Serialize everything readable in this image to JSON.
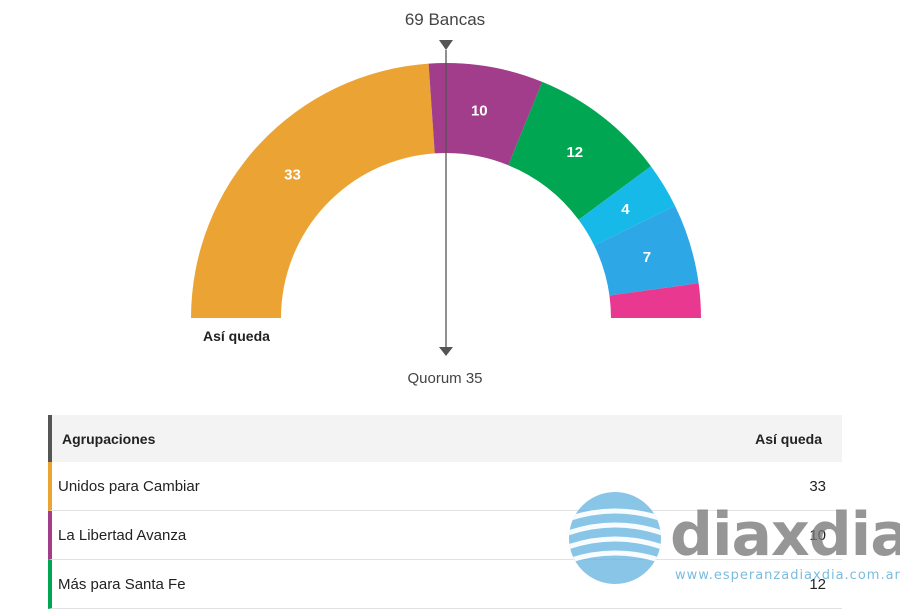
{
  "chart_data": {
    "type": "pie",
    "variant": "semicircle",
    "total_label": "69 Bancas",
    "quorum_label": "Quorum 35",
    "caption": "Así queda",
    "total": 69,
    "segments": [
      {
        "value": 33,
        "color": "#EBA434",
        "label": "33"
      },
      {
        "value": 10,
        "color": "#A23D8B",
        "label": "10"
      },
      {
        "value": 12,
        "color": "#00A651",
        "label": "12"
      },
      {
        "value": 4,
        "color": "#17B9E8",
        "label": "4"
      },
      {
        "value": 7,
        "color": "#2EA7E6",
        "label": "7"
      },
      {
        "value": 3,
        "color": "#E8388F",
        "label": ""
      }
    ]
  },
  "table": {
    "header": {
      "name": "Agrupaciones",
      "value": "Así queda"
    },
    "rows": [
      {
        "name": "Unidos para Cambiar",
        "value": "33",
        "color": "#EBA434"
      },
      {
        "name": "La Libertad Avanza",
        "value": "10",
        "color": "#A23D8B"
      },
      {
        "name": "Más para Santa Fe",
        "value": "12",
        "color": "#00A651"
      }
    ]
  },
  "watermark": {
    "brand": "diaxdia",
    "url": "www.esperanzadiaxdia.com.ar"
  }
}
